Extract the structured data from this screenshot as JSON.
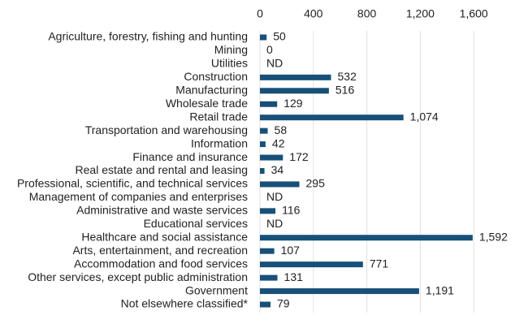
{
  "chart_data": {
    "type": "hbar",
    "categories": [
      "Agriculture, forestry, fishing and hunting",
      "Mining",
      "Utilities",
      "Construction",
      "Manufacturing",
      "Wholesale trade",
      "Retail trade",
      "Transportation and warehousing",
      "Information",
      "Finance and insurance",
      "Real estate and rental and leasing",
      "Professional, scientific, and technical services",
      "Management of companies and enterprises",
      "Administrative and waste services",
      "Educational services",
      "Healthcare and social assistance",
      "Arts, entertainment, and recreation",
      "Accommodation and food services",
      "Other services, except public administration",
      "Government",
      "Not elsewhere classified*"
    ],
    "values": [
      50,
      0,
      null,
      532,
      516,
      129,
      1074,
      58,
      42,
      172,
      34,
      295,
      null,
      116,
      null,
      1592,
      107,
      771,
      131,
      1191,
      79
    ],
    "value_labels": [
      "50",
      "0",
      "ND",
      "532",
      "516",
      "129",
      "1,074",
      "58",
      "42",
      "172",
      "34",
      "295",
      "ND",
      "116",
      "ND",
      "1,592",
      "107",
      "771",
      "131",
      "1,191",
      "79"
    ],
    "color": "#175079",
    "xlim": [
      0,
      1800
    ],
    "xticks": [
      0,
      400,
      800,
      {
        "value": 1200,
        "label": "1,200"
      },
      {
        "value": 1600,
        "label": "1,600"
      }
    ],
    "grid": true
  }
}
